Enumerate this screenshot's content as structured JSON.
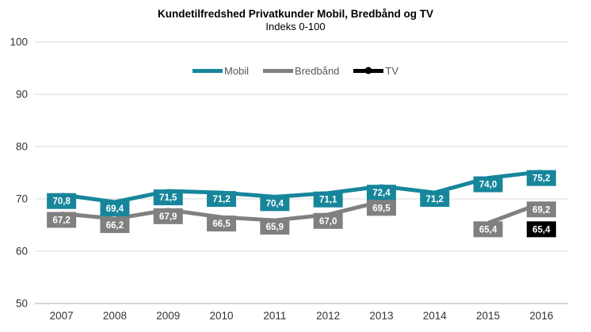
{
  "title": "Kundetilfredshed Privatkunder Mobil, Bredbånd og TV",
  "subtitle": "Indeks 0-100",
  "chart_data": {
    "type": "line",
    "title": "Kundetilfredshed Privatkunder Mobil, Bredbånd og TV",
    "subtitle": "Indeks 0-100",
    "categories": [
      "2007",
      "2008",
      "2009",
      "2010",
      "2011",
      "2012",
      "2013",
      "2014",
      "2015",
      "2016"
    ],
    "series": [
      {
        "name": "Mobil",
        "color": "#17869B",
        "values": [
          70.8,
          69.4,
          71.5,
          71.2,
          70.4,
          71.1,
          72.4,
          71.2,
          74.0,
          75.2
        ],
        "labels": [
          "70,8",
          "69,4",
          "71,5",
          "71,2",
          "70,4",
          "71,1",
          "72,4",
          "71,2",
          "74,0",
          "75,2"
        ]
      },
      {
        "name": "Bredbånd",
        "color": "#808080",
        "values": [
          67.2,
          66.2,
          67.9,
          66.5,
          65.9,
          67.0,
          69.5,
          null,
          65.4,
          69.2
        ],
        "labels": [
          "67,2",
          "66,2",
          "67,9",
          "66,5",
          "65,9",
          "67,0",
          "69,5",
          null,
          "65,4",
          "69,2"
        ]
      },
      {
        "name": "TV",
        "color": "#000000",
        "values": [
          null,
          null,
          null,
          null,
          null,
          null,
          null,
          null,
          null,
          65.4
        ],
        "labels": [
          null,
          null,
          null,
          null,
          null,
          null,
          null,
          null,
          null,
          "65,4"
        ]
      }
    ],
    "ylim": [
      50,
      100
    ],
    "yticks": [
      50,
      60,
      70,
      80,
      90,
      100
    ],
    "grid": true,
    "legend_position": "top",
    "data_labels": true,
    "label_text_color": "#FFFFFF"
  },
  "axis_style": {
    "gridline_color": "#D9D9D9",
    "axis_line_color": "#BFBFBF",
    "tick_text_color": "#333333"
  }
}
